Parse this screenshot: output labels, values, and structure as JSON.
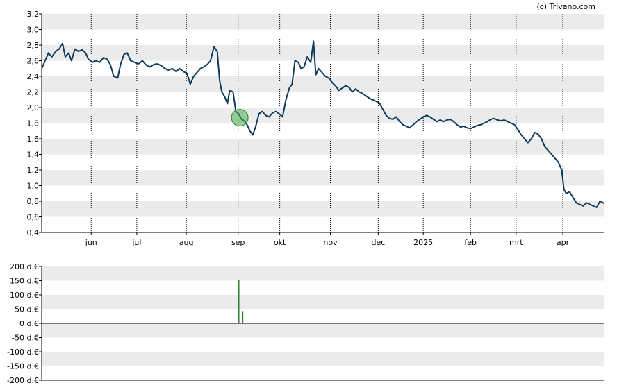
{
  "credit": "(c) Trivano.com",
  "colors": {
    "line": "#0d3b5c",
    "band": "#ebebeb",
    "grid": "#000000",
    "marker": "#4caf50",
    "volume": "#2e7d32"
  },
  "chart_data": [
    {
      "type": "line",
      "ylim": [
        0.4,
        3.2
      ],
      "y_ticks": [
        "0,4",
        "0,6",
        "0,8",
        "1,0",
        "1,2",
        "1,4",
        "1,6",
        "1,8",
        "2,0",
        "2,2",
        "2,4",
        "2,6",
        "2,8",
        "3,0",
        "3,2"
      ],
      "y_values": [
        0.4,
        0.6,
        0.8,
        1.0,
        1.2,
        1.4,
        1.6,
        1.8,
        2.0,
        2.2,
        2.4,
        2.6,
        2.8,
        3.0,
        3.2
      ],
      "x_range": [
        0,
        100
      ],
      "x_ticks": [
        {
          "label": "jun",
          "x": 8.8
        },
        {
          "label": "jul",
          "x": 16.9
        },
        {
          "label": "aug",
          "x": 25.7
        },
        {
          "label": "sep",
          "x": 34.9
        },
        {
          "label": "okt",
          "x": 42.3
        },
        {
          "label": "nov",
          "x": 51.3
        },
        {
          "label": "dec",
          "x": 59.8
        },
        {
          "label": "2025",
          "x": 67.8
        },
        {
          "label": "feb",
          "x": 76.2
        },
        {
          "label": "mrt",
          "x": 84.3
        },
        {
          "label": "apr",
          "x": 92.6
        }
      ],
      "marker": {
        "x": 35.2,
        "y": 1.87
      },
      "series": [
        {
          "points": [
            [
              0,
              2.5
            ],
            [
              0.6,
              2.6
            ],
            [
              1.2,
              2.7
            ],
            [
              1.8,
              2.65
            ],
            [
              2.5,
              2.72
            ],
            [
              3.1,
              2.75
            ],
            [
              3.7,
              2.82
            ],
            [
              4.2,
              2.65
            ],
            [
              4.8,
              2.7
            ],
            [
              5.3,
              2.6
            ],
            [
              5.9,
              2.75
            ],
            [
              6.5,
              2.72
            ],
            [
              7.2,
              2.74
            ],
            [
              7.8,
              2.7
            ],
            [
              8.3,
              2.62
            ],
            [
              9,
              2.58
            ],
            [
              9.6,
              2.6
            ],
            [
              10.3,
              2.58
            ],
            [
              11,
              2.64
            ],
            [
              11.6,
              2.62
            ],
            [
              12.2,
              2.55
            ],
            [
              12.8,
              2.4
            ],
            [
              13.5,
              2.38
            ],
            [
              14,
              2.55
            ],
            [
              14.6,
              2.68
            ],
            [
              15.2,
              2.7
            ],
            [
              15.8,
              2.6
            ],
            [
              16.5,
              2.58
            ],
            [
              17.2,
              2.56
            ],
            [
              17.9,
              2.6
            ],
            [
              18.5,
              2.55
            ],
            [
              19.2,
              2.52
            ],
            [
              19.9,
              2.55
            ],
            [
              20.5,
              2.56
            ],
            [
              21.2,
              2.54
            ],
            [
              21.9,
              2.5
            ],
            [
              22.5,
              2.48
            ],
            [
              23.2,
              2.5
            ],
            [
              23.9,
              2.46
            ],
            [
              24.5,
              2.5
            ],
            [
              25.2,
              2.46
            ],
            [
              25.8,
              2.44
            ],
            [
              26.4,
              2.3
            ],
            [
              27,
              2.4
            ],
            [
              27.6,
              2.45
            ],
            [
              28.2,
              2.5
            ],
            [
              28.8,
              2.52
            ],
            [
              29.4,
              2.55
            ],
            [
              30,
              2.6
            ],
            [
              30.6,
              2.78
            ],
            [
              31.2,
              2.72
            ],
            [
              31.6,
              2.35
            ],
            [
              32,
              2.2
            ],
            [
              32.5,
              2.14
            ],
            [
              33,
              2.05
            ],
            [
              33.4,
              2.22
            ],
            [
              34,
              2.2
            ],
            [
              34.5,
              1.95
            ],
            [
              35,
              1.92
            ],
            [
              35.5,
              1.85
            ],
            [
              36,
              1.83
            ],
            [
              36.5,
              1.78
            ],
            [
              37,
              1.7
            ],
            [
              37.5,
              1.65
            ],
            [
              38,
              1.75
            ],
            [
              38.6,
              1.92
            ],
            [
              39.2,
              1.95
            ],
            [
              39.8,
              1.9
            ],
            [
              40.4,
              1.88
            ],
            [
              41,
              1.93
            ],
            [
              41.6,
              1.95
            ],
            [
              42.2,
              1.92
            ],
            [
              42.8,
              1.88
            ],
            [
              43.4,
              2.1
            ],
            [
              44,
              2.25
            ],
            [
              44.5,
              2.3
            ],
            [
              45,
              2.6
            ],
            [
              45.6,
              2.58
            ],
            [
              46.1,
              2.5
            ],
            [
              46.6,
              2.52
            ],
            [
              47.2,
              2.65
            ],
            [
              47.8,
              2.58
            ],
            [
              48.3,
              2.85
            ],
            [
              48.7,
              2.42
            ],
            [
              49.2,
              2.5
            ],
            [
              49.8,
              2.45
            ],
            [
              50.4,
              2.4
            ],
            [
              51,
              2.38
            ],
            [
              51.6,
              2.32
            ],
            [
              52.2,
              2.28
            ],
            [
              52.8,
              2.22
            ],
            [
              53.4,
              2.25
            ],
            [
              54,
              2.28
            ],
            [
              54.6,
              2.26
            ],
            [
              55.2,
              2.2
            ],
            [
              55.8,
              2.24
            ],
            [
              56.4,
              2.2
            ],
            [
              57,
              2.18
            ],
            [
              57.6,
              2.15
            ],
            [
              58.2,
              2.12
            ],
            [
              58.8,
              2.1
            ],
            [
              59.4,
              2.08
            ],
            [
              60,
              2.06
            ],
            [
              60.6,
              1.98
            ],
            [
              61.2,
              1.9
            ],
            [
              61.8,
              1.86
            ],
            [
              62.4,
              1.85
            ],
            [
              63,
              1.88
            ],
            [
              63.6,
              1.82
            ],
            [
              64.2,
              1.78
            ],
            [
              64.8,
              1.76
            ],
            [
              65.4,
              1.74
            ],
            [
              66,
              1.78
            ],
            [
              66.6,
              1.82
            ],
            [
              67.2,
              1.85
            ],
            [
              67.8,
              1.88
            ],
            [
              68.4,
              1.9
            ],
            [
              69,
              1.88
            ],
            [
              69.6,
              1.85
            ],
            [
              70.2,
              1.82
            ],
            [
              70.8,
              1.84
            ],
            [
              71.4,
              1.82
            ],
            [
              72,
              1.84
            ],
            [
              72.6,
              1.85
            ],
            [
              73.2,
              1.82
            ],
            [
              73.8,
              1.78
            ],
            [
              74.4,
              1.75
            ],
            [
              75,
              1.76
            ],
            [
              75.6,
              1.74
            ],
            [
              76.2,
              1.73
            ],
            [
              76.8,
              1.75
            ],
            [
              77.4,
              1.77
            ],
            [
              78,
              1.78
            ],
            [
              78.6,
              1.8
            ],
            [
              79.2,
              1.82
            ],
            [
              79.8,
              1.85
            ],
            [
              80.4,
              1.86
            ],
            [
              81,
              1.84
            ],
            [
              81.6,
              1.83
            ],
            [
              82.2,
              1.84
            ],
            [
              82.8,
              1.82
            ],
            [
              83.4,
              1.8
            ],
            [
              84,
              1.78
            ],
            [
              84.6,
              1.72
            ],
            [
              85.2,
              1.65
            ],
            [
              85.8,
              1.6
            ],
            [
              86.4,
              1.55
            ],
            [
              87,
              1.6
            ],
            [
              87.6,
              1.68
            ],
            [
              88.2,
              1.66
            ],
            [
              88.8,
              1.6
            ],
            [
              89.4,
              1.5
            ],
            [
              90,
              1.45
            ],
            [
              90.6,
              1.4
            ],
            [
              91.2,
              1.35
            ],
            [
              91.8,
              1.3
            ],
            [
              92.4,
              1.2
            ],
            [
              92.8,
              0.95
            ],
            [
              93.2,
              0.9
            ],
            [
              93.8,
              0.92
            ],
            [
              94.4,
              0.85
            ],
            [
              95,
              0.78
            ],
            [
              95.6,
              0.76
            ],
            [
              96.2,
              0.74
            ],
            [
              96.8,
              0.78
            ],
            [
              97.4,
              0.76
            ],
            [
              98,
              0.74
            ],
            [
              98.6,
              0.72
            ],
            [
              99.2,
              0.8
            ],
            [
              100,
              0.77
            ]
          ]
        }
      ]
    },
    {
      "type": "bar",
      "ylim": [
        -200,
        200
      ],
      "y_ticks": [
        "200 d.€",
        "150 d.€",
        "100 d.€",
        "50 d.€",
        "0 d.€",
        "-50 d.€",
        "-100 d.€",
        "-150 d.€",
        "-200 d.€"
      ],
      "y_values": [
        200,
        150,
        100,
        50,
        0,
        -50,
        -100,
        -150,
        -200
      ],
      "x_range": [
        0,
        100
      ],
      "bars": [
        {
          "x": 35.0,
          "value": 152
        },
        {
          "x": 35.7,
          "value": 43
        }
      ]
    }
  ]
}
